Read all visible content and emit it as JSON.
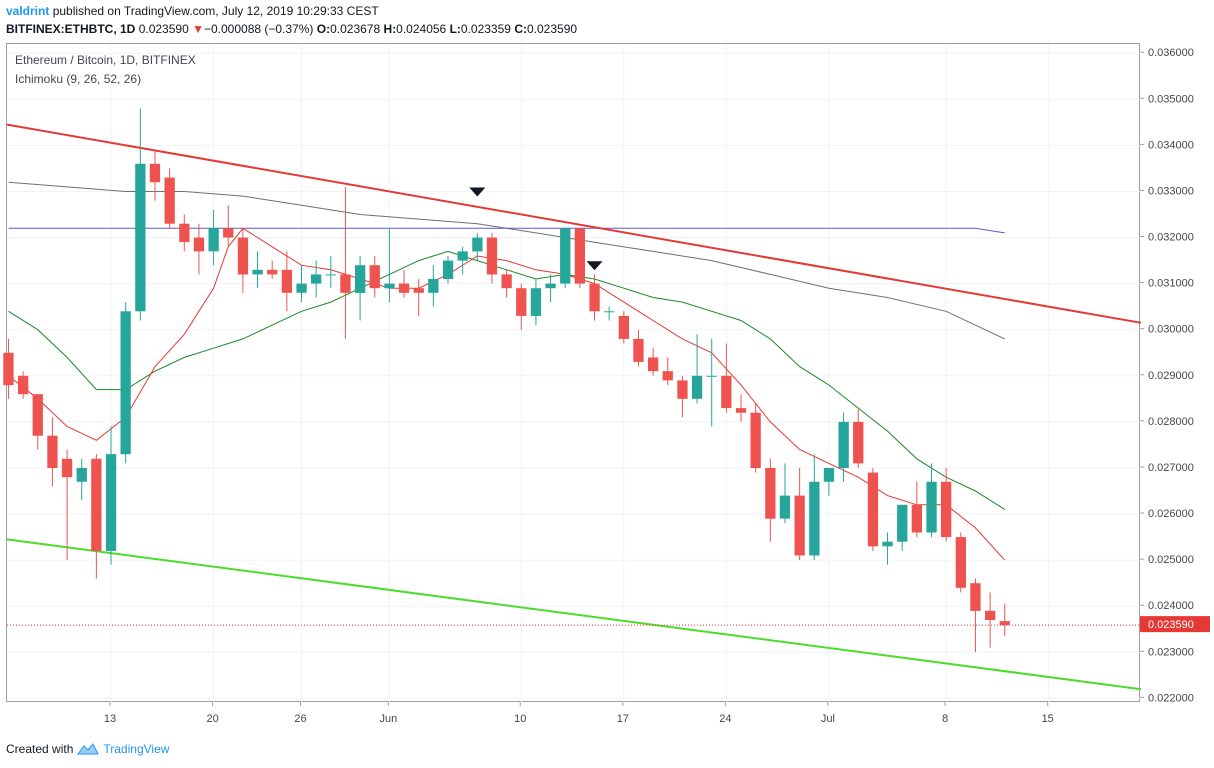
{
  "header": {
    "author": "valdrint",
    "published_text": "published on TradingView.com, July 12, 2019 10:29:33 CEST",
    "symbol": "BITFINEX:ETHBTC, 1D",
    "last": "0.023590",
    "change_arrow": "▼",
    "change": "−0.000088 (−0.37%)",
    "ohlc_o_label": "O:",
    "ohlc_o": "0.023678",
    "ohlc_h_label": "H:",
    "ohlc_h": "0.024056",
    "ohlc_l_label": "L:",
    "ohlc_l": "0.023359",
    "ohlc_c_label": "C:",
    "ohlc_c": "0.023590"
  },
  "legend": {
    "title": "Ethereum / Bitcoin, 1D, BITFINEX",
    "indicator": "Ichimoku (9, 26, 52, 26)"
  },
  "footer": {
    "created_with": "Created with",
    "brand": "TradingView",
    "logo_icon": "tradingview-logo-icon"
  },
  "colors": {
    "up": "#26a69a",
    "down": "#ef5350",
    "resistance": "#e53935",
    "support": "#4cdc2c",
    "tenkan": "#e53935",
    "kijun": "#1b8a24",
    "lagging_gray": "#707070",
    "lagging_blue": "#5c5ccc",
    "price_line": "#e53935"
  },
  "chart_data": {
    "type": "candlestick",
    "x_tick_labels": [
      "13",
      "20",
      "26",
      "Jun",
      "10",
      "17",
      "24",
      "Jul",
      "8",
      "15"
    ],
    "x_tick_days": [
      13,
      20,
      26,
      32,
      41,
      48,
      55,
      62,
      70,
      77
    ],
    "y_tick_labels": [
      "0.022000",
      "0.023000",
      "0.024000",
      "0.025000",
      "0.026000",
      "0.027000",
      "0.028000",
      "0.029000",
      "0.030000",
      "0.031000",
      "0.032000",
      "0.033000",
      "0.034000",
      "0.035000",
      "0.036000"
    ],
    "ylim": [
      0.0219,
      0.0362
    ],
    "xlim": [
      5.9,
      83.3
    ],
    "last_price_label": "0.023590",
    "last_price": 0.02359,
    "candles": [
      [
        6,
        0.0295,
        0.0298,
        0.0285,
        0.0288
      ],
      [
        7,
        0.029,
        0.0291,
        0.0285,
        0.0286
      ],
      [
        8,
        0.0286,
        0.0286,
        0.0274,
        0.0277
      ],
      [
        9,
        0.0277,
        0.0281,
        0.0266,
        0.027
      ],
      [
        10,
        0.0272,
        0.0274,
        0.025,
        0.0268
      ],
      [
        11,
        0.0267,
        0.0272,
        0.0263,
        0.027
      ],
      [
        12,
        0.0272,
        0.0273,
        0.0246,
        0.0252
      ],
      [
        13,
        0.0252,
        0.0279,
        0.0249,
        0.0273
      ],
      [
        14,
        0.0273,
        0.0306,
        0.0271,
        0.0304
      ],
      [
        15,
        0.0304,
        0.0348,
        0.0302,
        0.0336
      ],
      [
        16,
        0.0336,
        0.0339,
        0.0328,
        0.0332
      ],
      [
        17,
        0.0333,
        0.0335,
        0.0322,
        0.0323
      ],
      [
        18,
        0.0323,
        0.0325,
        0.0317,
        0.0319
      ],
      [
        19,
        0.032,
        0.0323,
        0.0312,
        0.0317
      ],
      [
        20,
        0.0317,
        0.0326,
        0.0314,
        0.0322
      ],
      [
        21,
        0.0322,
        0.0327,
        0.0318,
        0.032
      ],
      [
        22,
        0.032,
        0.0322,
        0.0308,
        0.0312
      ],
      [
        23,
        0.0312,
        0.0317,
        0.0309,
        0.0313
      ],
      [
        24,
        0.0313,
        0.0315,
        0.0311,
        0.0312
      ],
      [
        25,
        0.0313,
        0.0317,
        0.0304,
        0.0308
      ],
      [
        26,
        0.0308,
        0.0314,
        0.0306,
        0.031
      ],
      [
        27,
        0.031,
        0.0315,
        0.0307,
        0.0312
      ],
      [
        28,
        0.0312,
        0.0316,
        0.0309,
        0.0312
      ],
      [
        29,
        0.0312,
        0.0331,
        0.0298,
        0.0308
      ],
      [
        30,
        0.0308,
        0.0316,
        0.0302,
        0.0314
      ],
      [
        31,
        0.0314,
        0.0316,
        0.0307,
        0.0309
      ],
      [
        32,
        0.0309,
        0.0322,
        0.0306,
        0.031
      ],
      [
        33,
        0.031,
        0.0313,
        0.0307,
        0.0308
      ],
      [
        34,
        0.0309,
        0.0311,
        0.0303,
        0.0308
      ],
      [
        35,
        0.0308,
        0.0314,
        0.0305,
        0.0311
      ],
      [
        36,
        0.0311,
        0.0316,
        0.031,
        0.0315
      ],
      [
        37,
        0.0315,
        0.0318,
        0.0312,
        0.0317
      ],
      [
        38,
        0.0317,
        0.0321,
        0.0315,
        0.032
      ],
      [
        39,
        0.032,
        0.0321,
        0.031,
        0.0312
      ],
      [
        40,
        0.0312,
        0.0313,
        0.0307,
        0.0309
      ],
      [
        41,
        0.0309,
        0.031,
        0.03,
        0.0303
      ],
      [
        42,
        0.0303,
        0.0311,
        0.0301,
        0.0309
      ],
      [
        43,
        0.0309,
        0.0312,
        0.0306,
        0.031
      ],
      [
        44,
        0.031,
        0.0322,
        0.0309,
        0.0322
      ],
      [
        45,
        0.0322,
        0.0322,
        0.0309,
        0.031
      ],
      [
        46,
        0.031,
        0.0312,
        0.0302,
        0.0304
      ],
      [
        47,
        0.0304,
        0.0305,
        0.0302,
        0.0304
      ],
      [
        48,
        0.0303,
        0.0304,
        0.0297,
        0.0298
      ],
      [
        49,
        0.0298,
        0.03,
        0.0292,
        0.0293
      ],
      [
        50,
        0.0294,
        0.0296,
        0.029,
        0.0291
      ],
      [
        51,
        0.0291,
        0.0294,
        0.0288,
        0.0289
      ],
      [
        52,
        0.0289,
        0.029,
        0.0281,
        0.0285
      ],
      [
        53,
        0.0285,
        0.0299,
        0.0284,
        0.029
      ],
      [
        54,
        0.029,
        0.0298,
        0.0279,
        0.029
      ],
      [
        55,
        0.029,
        0.0297,
        0.0282,
        0.0283
      ],
      [
        56,
        0.0283,
        0.0286,
        0.028,
        0.0282
      ],
      [
        57,
        0.0282,
        0.0284,
        0.0269,
        0.027
      ],
      [
        58,
        0.027,
        0.0272,
        0.0254,
        0.0259
      ],
      [
        59,
        0.0259,
        0.0271,
        0.0258,
        0.0264
      ],
      [
        60,
        0.0264,
        0.027,
        0.025,
        0.0251
      ],
      [
        61,
        0.0251,
        0.0273,
        0.025,
        0.0267
      ],
      [
        62,
        0.0267,
        0.027,
        0.0264,
        0.027
      ],
      [
        63,
        0.027,
        0.0282,
        0.0267,
        0.028
      ],
      [
        64,
        0.028,
        0.0283,
        0.027,
        0.0271
      ],
      [
        65,
        0.0269,
        0.027,
        0.0252,
        0.0253
      ],
      [
        66,
        0.0253,
        0.0256,
        0.0249,
        0.0254
      ],
      [
        67,
        0.0254,
        0.0262,
        0.0252,
        0.0262
      ],
      [
        68,
        0.0262,
        0.0267,
        0.0255,
        0.0256
      ],
      [
        69,
        0.0256,
        0.0271,
        0.0255,
        0.0267
      ],
      [
        70,
        0.0267,
        0.027,
        0.0254,
        0.0255
      ],
      [
        71,
        0.0255,
        0.0256,
        0.0243,
        0.0244
      ],
      [
        72,
        0.0245,
        0.0246,
        0.023,
        0.0239
      ],
      [
        73,
        0.0239,
        0.0243,
        0.0231,
        0.0237
      ],
      [
        74,
        0.023678,
        0.024056,
        0.023359,
        0.02359
      ]
    ],
    "lines": {
      "resistance": [
        [
          5.9,
          0.03445
        ],
        [
          83.3,
          0.03015
        ]
      ],
      "support": [
        [
          5.9,
          0.02545
        ],
        [
          83.3,
          0.0222
        ]
      ],
      "tenkan": [
        [
          6,
          0.029
        ],
        [
          8,
          0.0285
        ],
        [
          10,
          0.0279
        ],
        [
          12,
          0.0276
        ],
        [
          14,
          0.0281
        ],
        [
          16,
          0.0292
        ],
        [
          18,
          0.0299
        ],
        [
          20,
          0.0309
        ],
        [
          21,
          0.0318
        ],
        [
          22,
          0.0322
        ],
        [
          24,
          0.0318
        ],
        [
          26,
          0.0314
        ],
        [
          28,
          0.0313
        ],
        [
          30,
          0.0311
        ],
        [
          32,
          0.0309
        ],
        [
          34,
          0.0309
        ],
        [
          36,
          0.0312
        ],
        [
          38,
          0.0316
        ],
        [
          40,
          0.0315
        ],
        [
          42,
          0.0313
        ],
        [
          44,
          0.0312
        ],
        [
          46,
          0.031
        ],
        [
          48,
          0.0306
        ],
        [
          50,
          0.0302
        ],
        [
          52,
          0.0298
        ],
        [
          54,
          0.0295
        ],
        [
          56,
          0.0288
        ],
        [
          58,
          0.028
        ],
        [
          60,
          0.0274
        ],
        [
          62,
          0.0271
        ],
        [
          64,
          0.0268
        ],
        [
          66,
          0.0264
        ],
        [
          68,
          0.0262
        ],
        [
          70,
          0.0262
        ],
        [
          72,
          0.0257
        ],
        [
          74,
          0.025
        ]
      ],
      "kijun": [
        [
          6,
          0.0304
        ],
        [
          8,
          0.03
        ],
        [
          10,
          0.0294
        ],
        [
          12,
          0.0287
        ],
        [
          14,
          0.0287
        ],
        [
          16,
          0.0291
        ],
        [
          18,
          0.0294
        ],
        [
          20,
          0.0296
        ],
        [
          22,
          0.0298
        ],
        [
          24,
          0.0301
        ],
        [
          26,
          0.0304
        ],
        [
          28,
          0.0306
        ],
        [
          30,
          0.0309
        ],
        [
          32,
          0.0312
        ],
        [
          34,
          0.0315
        ],
        [
          36,
          0.0317
        ],
        [
          38,
          0.0315
        ],
        [
          40,
          0.0313
        ],
        [
          42,
          0.0311
        ],
        [
          44,
          0.0312
        ],
        [
          46,
          0.0311
        ],
        [
          48,
          0.0309
        ],
        [
          50,
          0.0307
        ],
        [
          52,
          0.0306
        ],
        [
          54,
          0.0304
        ],
        [
          56,
          0.0302
        ],
        [
          58,
          0.0298
        ],
        [
          60,
          0.0292
        ],
        [
          62,
          0.0288
        ],
        [
          64,
          0.0283
        ],
        [
          66,
          0.0278
        ],
        [
          68,
          0.0272
        ],
        [
          70,
          0.0268
        ],
        [
          72,
          0.0265
        ],
        [
          74,
          0.0261
        ]
      ],
      "gray": [
        [
          6,
          0.0332
        ],
        [
          10,
          0.0331
        ],
        [
          14,
          0.033
        ],
        [
          18,
          0.033
        ],
        [
          22,
          0.0329
        ],
        [
          26,
          0.0327
        ],
        [
          30,
          0.0325
        ],
        [
          34,
          0.0324
        ],
        [
          38,
          0.0323
        ],
        [
          42,
          0.0321
        ],
        [
          46,
          0.0319
        ],
        [
          50,
          0.0317
        ],
        [
          54,
          0.0315
        ],
        [
          58,
          0.0312
        ],
        [
          62,
          0.0309
        ],
        [
          66,
          0.0307
        ],
        [
          70,
          0.0304
        ],
        [
          74,
          0.0298
        ]
      ],
      "blue": [
        [
          6,
          0.0322
        ],
        [
          10,
          0.0322
        ],
        [
          14,
          0.0322
        ],
        [
          18,
          0.0322
        ],
        [
          22,
          0.0322
        ],
        [
          26,
          0.0322
        ],
        [
          30,
          0.0322
        ],
        [
          34,
          0.0322
        ],
        [
          38,
          0.0322
        ],
        [
          42,
          0.0322
        ],
        [
          46,
          0.0322
        ],
        [
          50,
          0.0322
        ],
        [
          54,
          0.0322
        ],
        [
          58,
          0.0322
        ],
        [
          62,
          0.0322
        ],
        [
          66,
          0.0322
        ],
        [
          70,
          0.0322
        ],
        [
          72,
          0.0322
        ],
        [
          74,
          0.0321
        ]
      ]
    },
    "markers": [
      {
        "label": "down-triangle-marker",
        "day": 38,
        "price": 0.033
      },
      {
        "label": "down-triangle-marker",
        "day": 46,
        "price": 0.0314
      }
    ]
  }
}
